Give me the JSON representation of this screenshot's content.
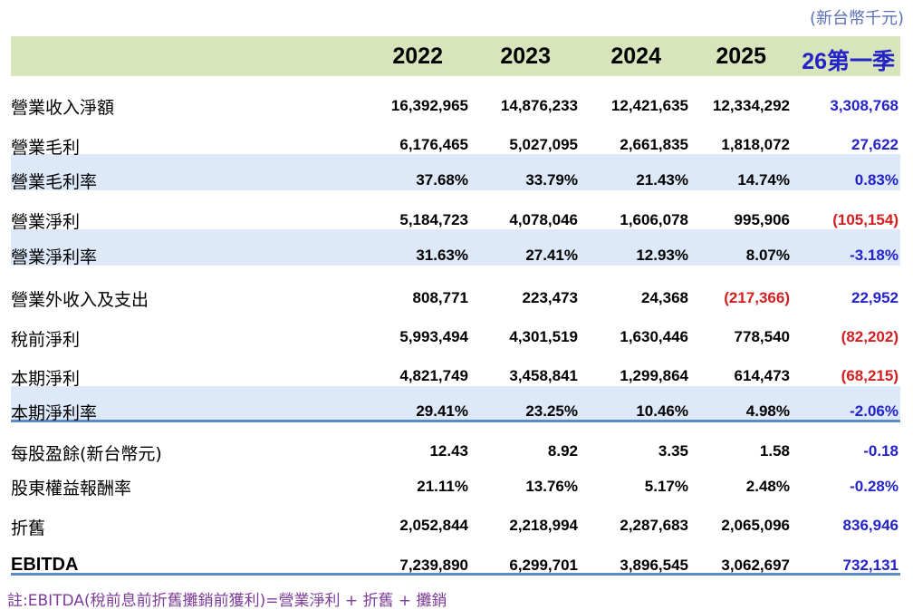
{
  "unit": "(新台幣千元)",
  "colors": {
    "header_bg": "#d8e4bc",
    "highlight_band": "#dde8f8",
    "blue_text": "#2323c8",
    "red_text": "#d22020",
    "note_text": "#7d3c98"
  },
  "columns": [
    "2022",
    "2023",
    "2024",
    "2025",
    "26第一季"
  ],
  "rows": [
    {
      "label": "營業收入淨額",
      "values": [
        "16,392,965",
        "14,876,233",
        "12,421,635",
        "12,334,292",
        "3,308,768"
      ]
    },
    {
      "label": "營業毛利",
      "values": [
        "6,176,465",
        "5,027,095",
        "2,661,835",
        "1,818,072",
        "27,622"
      ]
    },
    {
      "label": "營業毛利率",
      "values": [
        "37.68%",
        "33.79%",
        "21.43%",
        "14.74%",
        "0.83%"
      ],
      "highlight": true
    },
    {
      "label": "營業淨利",
      "values": [
        "5,184,723",
        "4,078,046",
        "1,606,078",
        "995,906",
        "(105,154)"
      ]
    },
    {
      "label": "營業淨利率",
      "values": [
        "31.63%",
        "27.41%",
        "12.93%",
        "8.07%",
        "-3.18%"
      ],
      "highlight": true
    },
    {
      "label": "營業外收入及支出",
      "values": [
        "808,771",
        "223,473",
        "24,368",
        "(217,366)",
        "22,952"
      ]
    },
    {
      "label": "稅前淨利",
      "values": [
        "5,993,494",
        "4,301,519",
        "1,630,446",
        "778,540",
        "(82,202)"
      ]
    },
    {
      "label": "本期淨利",
      "values": [
        "4,821,749",
        "3,458,841",
        "1,299,864",
        "614,473",
        "(68,215)"
      ]
    },
    {
      "label": "本期淨利率",
      "values": [
        "29.41%",
        "23.25%",
        "10.46%",
        "4.98%",
        "-2.06%"
      ],
      "highlight": true
    },
    {
      "label": "每股盈餘(新台幣元)",
      "values": [
        "12.43",
        "8.92",
        "3.35",
        "1.58",
        "-0.18"
      ]
    },
    {
      "label": "股東權益報酬率",
      "values": [
        "21.11%",
        "13.76%",
        "5.17%",
        "2.48%",
        "-0.28%"
      ]
    },
    {
      "label": "折舊",
      "values": [
        "2,052,844",
        "2,218,994",
        "2,287,683",
        "2,065,096",
        "836,946"
      ]
    },
    {
      "label": "EBITDA",
      "values": [
        "7,239,890",
        "6,299,701",
        "3,896,545",
        "3,062,697",
        "732,131"
      ]
    }
  ],
  "note": "註:EBITDA(稅前息前折舊攤銷前獲利)=營業淨利 + 折舊 + 攤銷"
}
